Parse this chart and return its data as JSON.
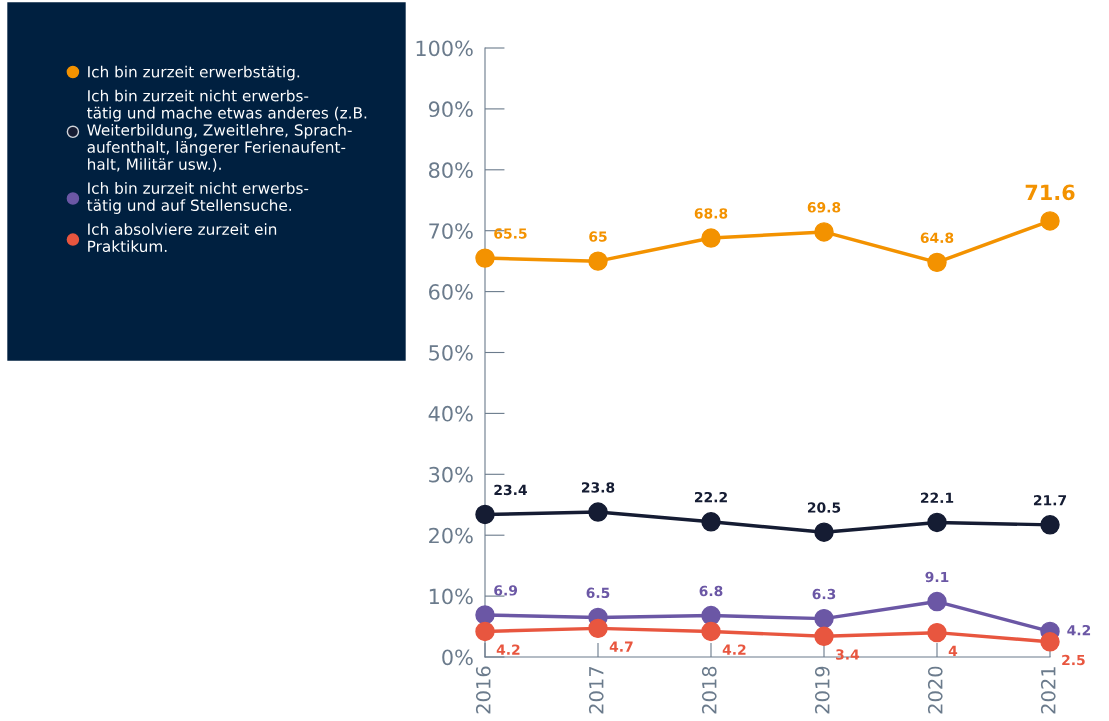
{
  "chart_data": {
    "type": "line",
    "categories": [
      "2016",
      "2017",
      "2018",
      "2019",
      "2020",
      "2021"
    ],
    "series": [
      {
        "name": "Ich bin zurzeit erwerbstätig.",
        "color": "#f39200",
        "values": [
          65.5,
          65,
          68.8,
          69.8,
          64.8,
          71.6
        ]
      },
      {
        "name": "Ich bin zurzeit nicht erwerbs-\ntätig und mache etwas anderes (z.B.\nWeiterbildung, Zweitlehre, Sprach-\naufenthalt, längerer Ferienaufent-\nhalt, Militär usw.).",
        "color": "#151c33",
        "values": [
          23.4,
          23.8,
          22.2,
          20.5,
          22.1,
          21.7
        ]
      },
      {
        "name": "Ich bin zurzeit nicht erwerbs-\ntätig und auf Stellensuche.",
        "color": "#6b57a5",
        "values": [
          6.9,
          6.5,
          6.8,
          6.3,
          9.1,
          4.2
        ]
      },
      {
        "name": "Ich absolviere zurzeit ein\nPraktikum.",
        "color": "#e8563f",
        "values": [
          4.2,
          4.7,
          4.2,
          3.4,
          4,
          2.5
        ]
      }
    ],
    "ylim": [
      0,
      100
    ],
    "yticks": [
      {
        "value": 0,
        "label": "0%"
      },
      {
        "value": 10,
        "label": "10%"
      },
      {
        "value": 20,
        "label": "20%"
      },
      {
        "value": 30,
        "label": "30%"
      },
      {
        "value": 40,
        "label": "40%"
      },
      {
        "value": 50,
        "label": "50%"
      },
      {
        "value": 60,
        "label": "60%"
      },
      {
        "value": 70,
        "label": "70%"
      },
      {
        "value": 80,
        "label": "80%"
      },
      {
        "value": 90,
        "label": "90%"
      },
      {
        "value": 100,
        "label": "100%"
      }
    ],
    "data_labels": true,
    "legend": "left",
    "marker": "circle",
    "line_style": "solid",
    "grid": false
  }
}
